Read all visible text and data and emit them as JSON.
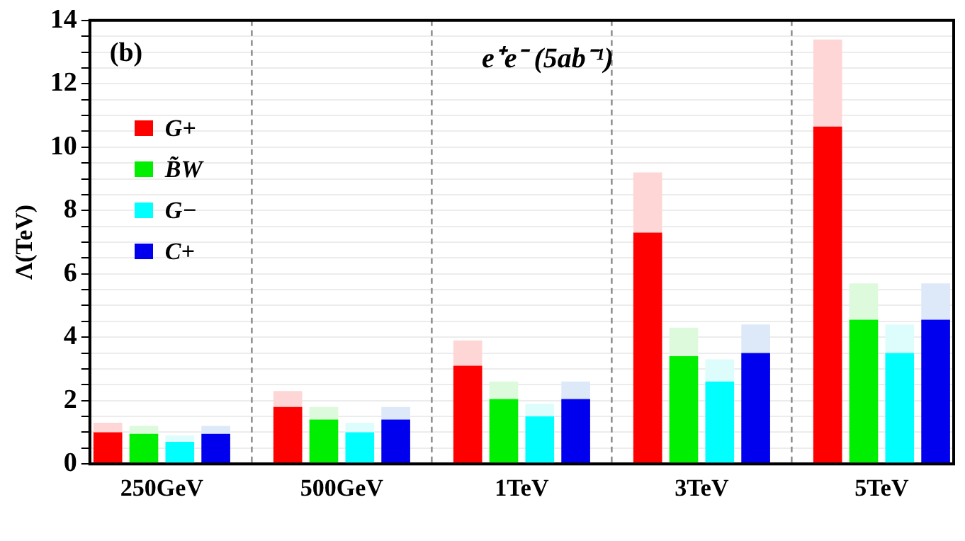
{
  "chart_data": {
    "type": "bar",
    "title": "e⁺e⁻ (5ab⁻¹)",
    "ylabel": "Λ(TeV)",
    "annotations": [
      "(b)"
    ],
    "categories": [
      null,
      "250GeV",
      null,
      null,
      null,
      null,
      "500GeV",
      null,
      null,
      null,
      null,
      "1TeV",
      null,
      null,
      null,
      null,
      "3TeV",
      null,
      null,
      null,
      null,
      "5TeV",
      null,
      null
    ],
    "stacked": true,
    "legend": "top left",
    "grid": "y",
    "ylim": [
      0,
      14
    ],
    "yticks": [
      0,
      {
        "value": 0.5,
        "label": null
      },
      {
        "value": 1,
        "label": null
      },
      {
        "value": 1.5,
        "label": null
      },
      2,
      {
        "value": 2.5,
        "label": null
      },
      {
        "value": 3,
        "label": null
      },
      {
        "value": 3.5,
        "label": null
      },
      4,
      {
        "value": 4.5,
        "label": null
      },
      {
        "value": 5,
        "label": null
      },
      {
        "value": 5.5,
        "label": null
      },
      6,
      {
        "value": 6.5,
        "label": null
      },
      {
        "value": 7,
        "label": null
      },
      {
        "value": 7.5,
        "label": null
      },
      8,
      {
        "value": 8.5,
        "label": null
      },
      {
        "value": 9,
        "label": null
      },
      {
        "value": 9.5,
        "label": null
      },
      10,
      {
        "value": 10.5,
        "label": null
      },
      {
        "value": 11,
        "label": null
      },
      {
        "value": 11.5,
        "label": null
      },
      12,
      {
        "value": 12.5,
        "label": null
      },
      {
        "value": 13,
        "label": null
      },
      {
        "value": 13.5,
        "label": null
      },
      14
    ],
    "series": [
      {
        "name": "G+",
        "color": "#ff0000",
        "values": [
          1.0,
          null,
          null,
          null,
          null,
          1.8,
          null,
          null,
          null,
          null,
          3.1,
          null,
          null,
          null,
          null,
          7.3,
          null,
          null,
          null,
          null,
          10.65,
          null,
          null,
          null
        ]
      },
      {
        "color": "#ffd6d6",
        "values": [
          0.3,
          null,
          null,
          null,
          null,
          0.5,
          null,
          null,
          null,
          null,
          0.8,
          null,
          null,
          null,
          null,
          1.9,
          null,
          null,
          null,
          null,
          2.75,
          null,
          null,
          null
        ]
      },
      {
        "name": "B̃W",
        "color": "#00ee00",
        "values": [
          null,
          0.95,
          null,
          null,
          null,
          null,
          1.4,
          null,
          null,
          null,
          null,
          2.05,
          null,
          null,
          null,
          null,
          3.4,
          null,
          null,
          null,
          null,
          4.55,
          null,
          null
        ]
      },
      {
        "color": "#ddfadd",
        "values": [
          null,
          0.25,
          null,
          null,
          null,
          null,
          0.4,
          null,
          null,
          null,
          null,
          0.55,
          null,
          null,
          null,
          null,
          0.9,
          null,
          null,
          null,
          null,
          1.15,
          null,
          null
        ]
      },
      {
        "name": "G−",
        "color": "#00ffff",
        "values": [
          null,
          null,
          0.7,
          null,
          null,
          null,
          null,
          1.0,
          null,
          null,
          null,
          null,
          1.5,
          null,
          null,
          null,
          null,
          2.6,
          null,
          null,
          null,
          null,
          3.5,
          null
        ]
      },
      {
        "color": "#ddfcfc",
        "values": [
          null,
          null,
          0.2,
          null,
          null,
          null,
          null,
          0.3,
          null,
          null,
          null,
          null,
          0.4,
          null,
          null,
          null,
          null,
          0.7,
          null,
          null,
          null,
          null,
          0.9,
          null
        ]
      },
      {
        "name": "C+",
        "color": "#0000ee",
        "values": [
          null,
          null,
          null,
          0.95,
          null,
          null,
          null,
          null,
          1.4,
          null,
          null,
          null,
          null,
          2.05,
          null,
          null,
          null,
          null,
          3.5,
          null,
          null,
          null,
          null,
          4.55
        ]
      },
      {
        "color": "#dde9f9",
        "values": [
          null,
          null,
          null,
          0.25,
          null,
          null,
          null,
          null,
          0.4,
          null,
          null,
          null,
          null,
          0.55,
          null,
          null,
          null,
          null,
          0.9,
          null,
          null,
          null,
          null,
          1.15
        ]
      }
    ]
  }
}
